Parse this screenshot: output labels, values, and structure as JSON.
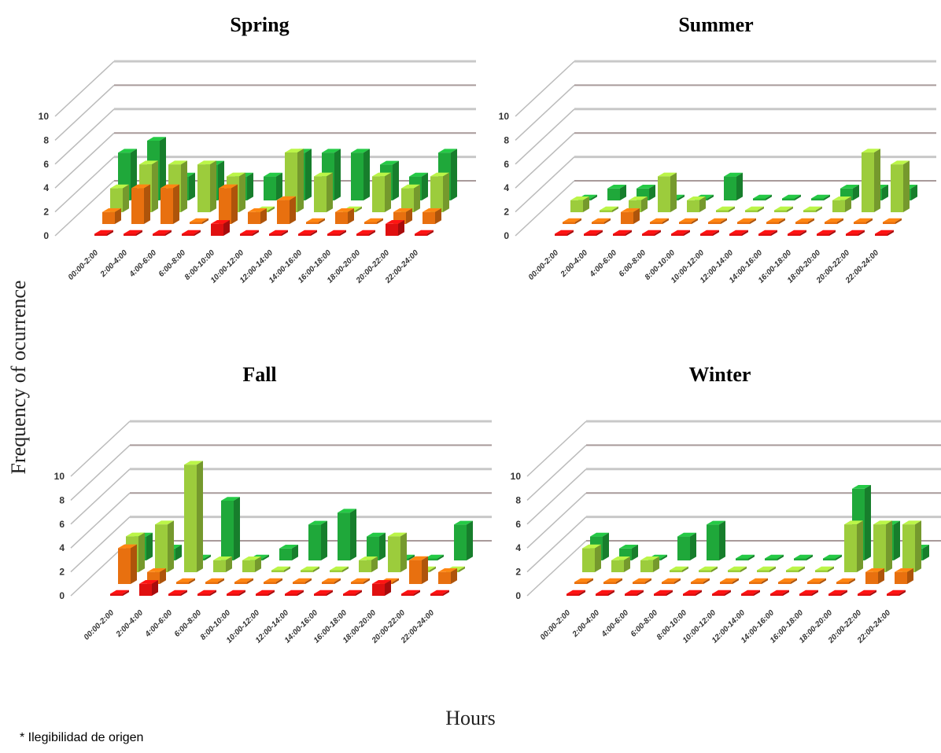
{
  "chart_data": [
    {
      "type": "bar",
      "title": "Spring",
      "ylim": [
        0,
        10
      ],
      "yticks": [
        0,
        2,
        4,
        6,
        8,
        10
      ],
      "categories": [
        "00:00-2:00",
        "2:00-4:00",
        "4:00-6:00",
        "6:00-8:00",
        "8:00-10:00",
        "10:00-12:00",
        "12:00-14:00",
        "14:00-16:00",
        "16:00-18:00",
        "18:00-20:00",
        "20:00-22:00",
        "22:00-24:00"
      ],
      "series": [
        {
          "values": [
            0,
            0,
            0,
            0,
            1,
            0,
            0,
            0,
            0,
            0,
            1,
            0
          ],
          "color": "#e01010"
        },
        {
          "values": [
            1,
            3,
            3,
            0,
            3,
            1,
            2,
            0,
            1,
            0,
            1,
            1
          ],
          "color": "#e8700f"
        },
        {
          "values": [
            2,
            4,
            4,
            4,
            3,
            0,
            5,
            3,
            0,
            3,
            2,
            3
          ],
          "color": "#9ccc3c"
        },
        {
          "values": [
            4,
            5,
            2,
            3,
            2,
            2,
            4,
            4,
            4,
            3,
            2,
            4
          ],
          "color": "#1fa83a"
        }
      ]
    },
    {
      "type": "bar",
      "title": "Summer",
      "ylim": [
        0,
        10
      ],
      "yticks": [
        0,
        2,
        4,
        6,
        8,
        10
      ],
      "categories": [
        "00:00-2:00",
        "2:00-4:00",
        "4:00-6:00",
        "6:00-8:00",
        "8:00-10:00",
        "10:00-12:00",
        "12:00-14:00",
        "14:00-16:00",
        "16:00-18:00",
        "18:00-20:00",
        "20:00-22:00",
        "22:00-24:00"
      ],
      "series": [
        {
          "values": [
            0,
            0,
            0,
            0,
            0,
            0,
            0,
            0,
            0,
            0,
            0,
            0
          ],
          "color": "#e01010"
        },
        {
          "values": [
            0,
            0,
            1,
            0,
            0,
            0,
            0,
            0,
            0,
            0,
            0,
            0
          ],
          "color": "#e8700f"
        },
        {
          "values": [
            1,
            0,
            1,
            3,
            1,
            0,
            0,
            0,
            0,
            1,
            5,
            4
          ],
          "color": "#9ccc3c"
        },
        {
          "values": [
            0,
            1,
            1,
            0,
            0,
            2,
            0,
            0,
            0,
            1,
            1,
            1
          ],
          "color": "#1fa83a"
        }
      ]
    },
    {
      "type": "bar",
      "title": "Fall",
      "ylim": [
        0,
        10
      ],
      "yticks": [
        0,
        2,
        4,
        6,
        8,
        10
      ],
      "categories": [
        "00:00-2:00",
        "2:00-4:00",
        "4:00-6:00",
        "6:00-8:00",
        "8:00-10:00",
        "10:00-12:00",
        "12:00-14:00",
        "14:00-16:00",
        "16:00-18:00",
        "18:00-20:00",
        "20:00-22:00",
        "22:00-24:00"
      ],
      "series": [
        {
          "values": [
            0,
            1,
            0,
            0,
            0,
            0,
            0,
            0,
            0,
            1,
            0,
            0
          ],
          "color": "#e01010"
        },
        {
          "values": [
            3,
            1,
            0,
            0,
            0,
            0,
            0,
            0,
            0,
            0,
            2,
            1
          ],
          "color": "#e8700f"
        },
        {
          "values": [
            3,
            4,
            9,
            1,
            1,
            0,
            0,
            0,
            1,
            3,
            0,
            0
          ],
          "color": "#9ccc3c"
        },
        {
          "values": [
            2,
            1,
            0,
            5,
            0,
            1,
            3,
            4,
            2,
            0,
            0,
            3
          ],
          "color": "#1fa83a"
        }
      ]
    },
    {
      "type": "bar",
      "title": "Winter",
      "ylim": [
        0,
        10
      ],
      "yticks": [
        0,
        2,
        4,
        6,
        8,
        10
      ],
      "categories": [
        "00:00-2:00",
        "2:00-4:00",
        "4:00-6:00",
        "6:00-8:00",
        "8:00-10:00",
        "10:00-12:00",
        "12:00-14:00",
        "14:00-16:00",
        "16:00-18:00",
        "18:00-20:00",
        "20:00-22:00",
        "22:00-24:00"
      ],
      "series": [
        {
          "values": [
            0,
            0,
            0,
            0,
            0,
            0,
            0,
            0,
            0,
            0,
            0,
            0
          ],
          "color": "#e01010"
        },
        {
          "values": [
            0,
            0,
            0,
            0,
            0,
            0,
            0,
            0,
            0,
            0,
            1,
            1
          ],
          "color": "#e8700f"
        },
        {
          "values": [
            2,
            1,
            1,
            0,
            0,
            0,
            0,
            0,
            0,
            4,
            4,
            4
          ],
          "color": "#9ccc3c"
        },
        {
          "values": [
            2,
            1,
            0,
            2,
            3,
            0,
            0,
            0,
            0,
            6,
            3,
            1
          ],
          "color": "#1fa83a"
        }
      ]
    }
  ],
  "ylabel": "Frequency of ocurrence",
  "xlabel": "Hours",
  "footnote": "* Ilegibilidad de origen"
}
